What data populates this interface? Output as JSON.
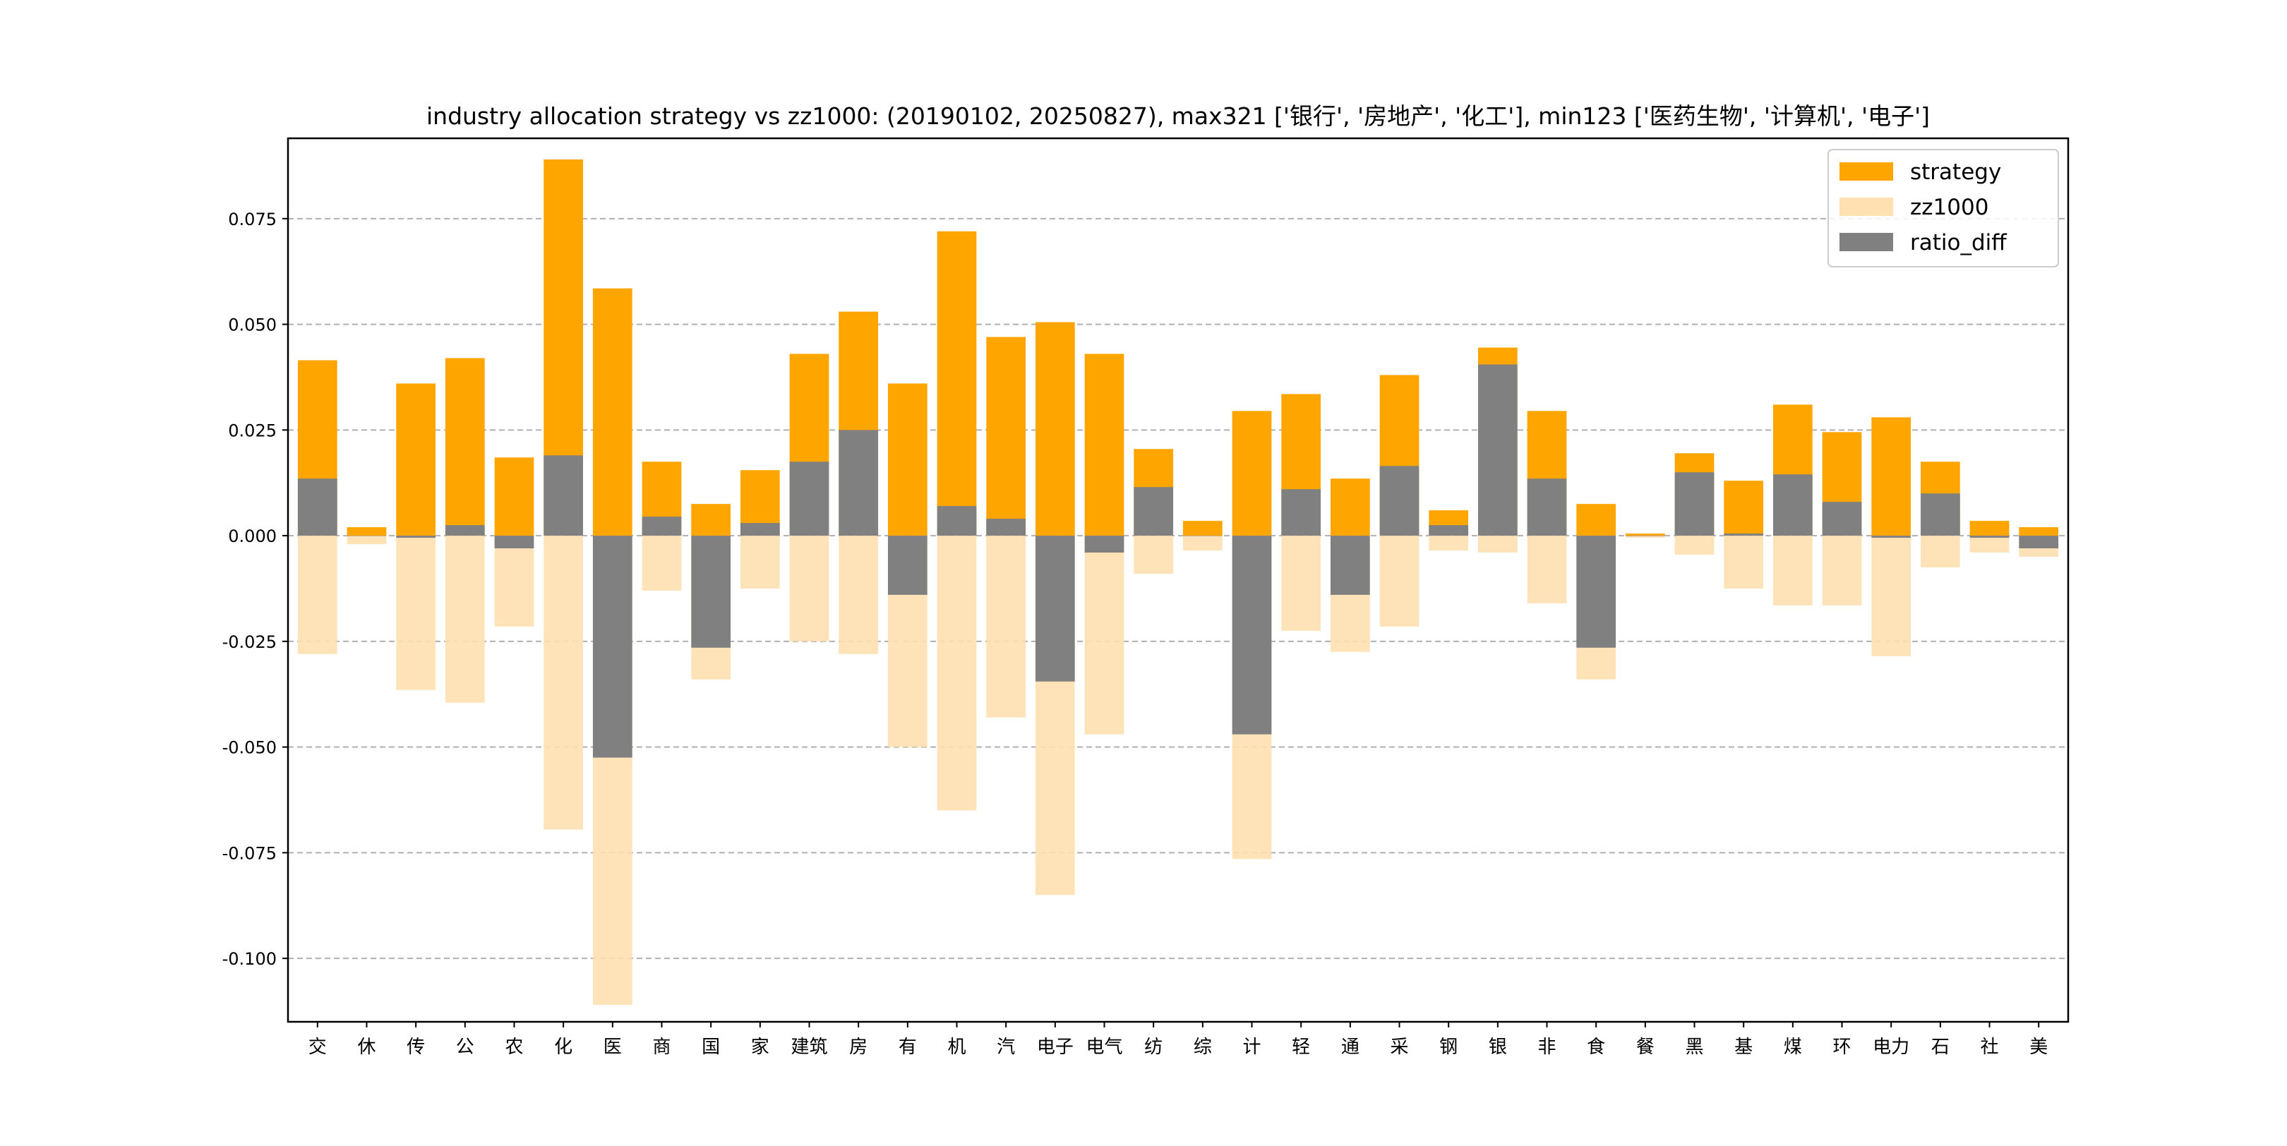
{
  "chart_data": {
    "type": "bar",
    "title": "industry allocation strategy vs zz1000: (20190102, 20250827), max321 ['银行', '房地产', '化工'], min123 ['医药生物', '计算机', '电子']",
    "xlabel": "",
    "ylabel": "",
    "ylim": [
      -0.115,
      0.094
    ],
    "yticks": [
      "0.075",
      "0.050",
      "0.025",
      "0.000",
      "-0.025",
      "-0.050",
      "-0.075",
      "-0.100"
    ],
    "ytick_values": [
      0.075,
      0.05,
      0.025,
      0.0,
      -0.025,
      -0.05,
      -0.075,
      -0.1
    ],
    "grid": "y-dashed",
    "legend_position": "top-right",
    "categories": [
      "交",
      "休",
      "传",
      "公",
      "农",
      "化",
      "医",
      "商",
      "国",
      "家",
      "建筑",
      "房",
      "有",
      "机",
      "汽",
      "电子",
      "电气",
      "纺",
      "综",
      "计",
      "轻",
      "通",
      "采",
      "钢",
      "银",
      "非",
      "食",
      "餐",
      "黑",
      "基",
      "煤",
      "环",
      "电力",
      "石",
      "社",
      "美"
    ],
    "series": [
      {
        "name": "strategy",
        "color": "#ffa500",
        "values": [
          0.0415,
          0.002,
          0.036,
          0.042,
          0.0185,
          0.089,
          0.0585,
          0.0175,
          0.0075,
          0.0155,
          0.043,
          0.053,
          0.036,
          0.072,
          0.047,
          0.0505,
          0.043,
          0.0205,
          0.0035,
          0.0295,
          0.0335,
          0.0135,
          0.038,
          0.006,
          0.0445,
          0.0295,
          0.0075,
          0.0005,
          0.0195,
          0.013,
          0.031,
          0.0245,
          0.028,
          0.0175,
          0.0035,
          0.002
        ]
      },
      {
        "name": "zz1000",
        "color": "#ffe0b0",
        "values": [
          -0.028,
          -0.002,
          -0.0365,
          -0.0395,
          -0.0215,
          -0.0695,
          -0.111,
          -0.013,
          -0.034,
          -0.0125,
          -0.025,
          -0.028,
          -0.05,
          -0.065,
          -0.043,
          -0.085,
          -0.047,
          -0.009,
          -0.0035,
          -0.0765,
          -0.0225,
          -0.0275,
          -0.0215,
          -0.0035,
          -0.004,
          -0.016,
          -0.034,
          -0.0005,
          -0.0045,
          -0.0125,
          -0.0165,
          -0.0165,
          -0.0285,
          -0.0075,
          -0.004,
          -0.005
        ]
      },
      {
        "name": "ratio_diff",
        "color": "#808080",
        "values": [
          0.0135,
          0.0,
          -0.0005,
          0.0025,
          -0.003,
          0.019,
          -0.0525,
          0.0045,
          -0.0265,
          0.003,
          0.0175,
          0.025,
          -0.014,
          0.007,
          0.004,
          -0.0345,
          -0.004,
          0.0115,
          0.0,
          -0.047,
          0.011,
          -0.014,
          0.0165,
          0.0025,
          0.0405,
          0.0135,
          -0.0265,
          0.0,
          0.015,
          0.0005,
          0.0145,
          0.008,
          -0.0005,
          0.01,
          -0.0005,
          -0.003
        ]
      }
    ]
  }
}
